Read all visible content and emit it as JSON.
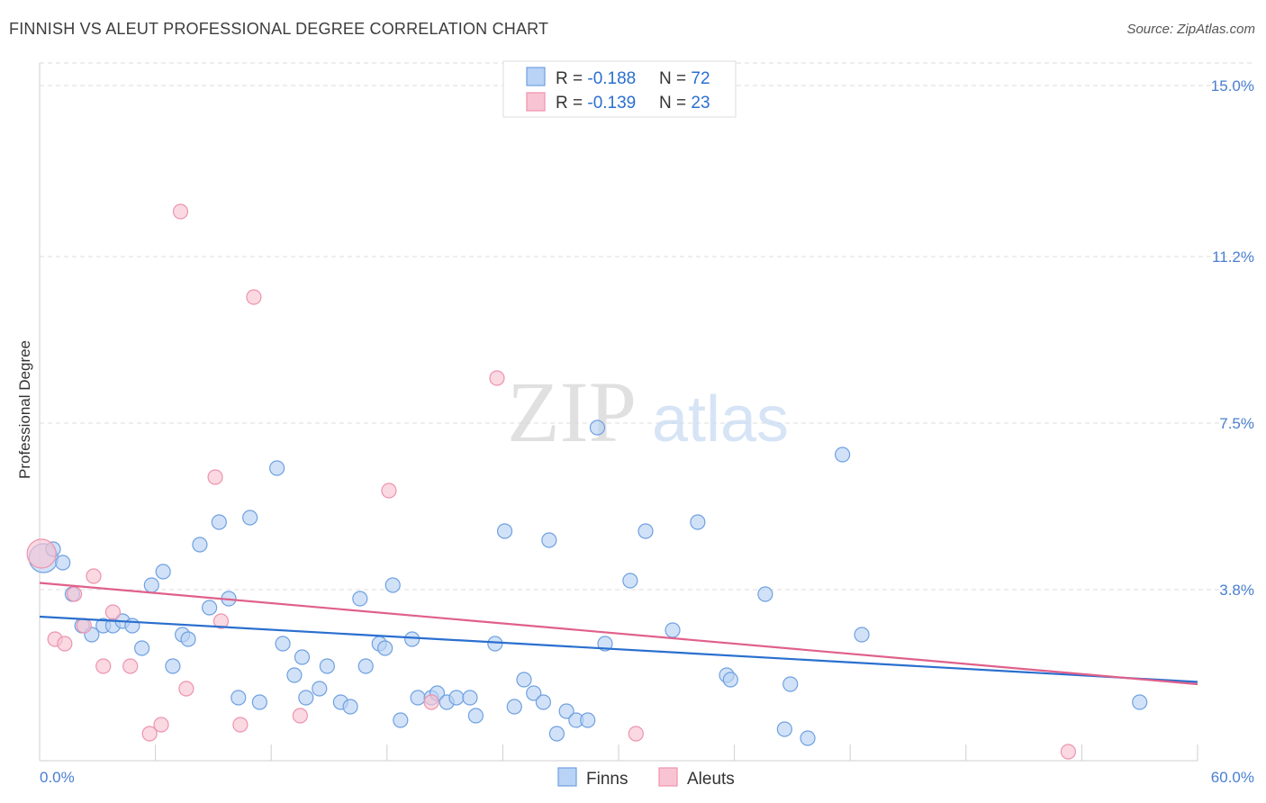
{
  "title": "FINNISH VS ALEUT PROFESSIONAL DEGREE CORRELATION CHART",
  "source": "Source: ZipAtlas.com",
  "watermark": {
    "zip": "ZIP",
    "atlas": "atlas"
  },
  "legend": {
    "rows": [
      {
        "r_label": "R = ",
        "r_value": "-0.188",
        "n_label": "N = ",
        "n_value": "72"
      },
      {
        "r_label": "R = ",
        "r_value": "-0.139",
        "n_label": "N = ",
        "n_value": "23"
      }
    ]
  },
  "colors": {
    "finns_fill": "#b8d3f5",
    "finns_stroke": "#6fa0e0",
    "finns_line": "#2a6fcf",
    "aleuts_fill": "#f8c4d3",
    "aleuts_stroke": "#ee93ae",
    "aleuts_line": "#e0608a",
    "tick": "#4a7fd0",
    "grid": "#dddddd"
  },
  "chart_data": {
    "type": "scatter",
    "title": "FINNISH VS ALEUT PROFESSIONAL DEGREE CORRELATION CHART",
    "xlabel": "",
    "ylabel": "Professional Degree",
    "xlim": [
      0,
      60
    ],
    "ylim": [
      0,
      15.5
    ],
    "x_tick_labels": [
      "0.0%",
      "60.0%"
    ],
    "y_ticks": [
      3.8,
      7.5,
      11.2,
      15.0
    ],
    "y_tick_labels": [
      "3.8%",
      "7.5%",
      "11.2%",
      "15.0%"
    ],
    "grid": true,
    "legend_position": "bottom-center",
    "series": [
      {
        "name": "Finns",
        "trend": {
          "x": [
            0,
            60
          ],
          "y": [
            3.2,
            1.75
          ]
        },
        "points": [
          [
            0.2,
            4.5
          ],
          [
            0.7,
            4.7
          ],
          [
            1.2,
            4.4
          ],
          [
            1.7,
            3.7
          ],
          [
            2.2,
            3.0
          ],
          [
            2.7,
            2.8
          ],
          [
            3.3,
            3.0
          ],
          [
            3.8,
            3.0
          ],
          [
            4.3,
            3.1
          ],
          [
            4.8,
            3.0
          ],
          [
            5.3,
            2.5
          ],
          [
            5.8,
            3.9
          ],
          [
            6.4,
            4.2
          ],
          [
            6.9,
            2.1
          ],
          [
            7.4,
            2.8
          ],
          [
            7.7,
            2.7
          ],
          [
            8.3,
            4.8
          ],
          [
            8.8,
            3.4
          ],
          [
            9.3,
            5.3
          ],
          [
            9.8,
            3.6
          ],
          [
            10.3,
            1.4
          ],
          [
            10.9,
            5.4
          ],
          [
            11.4,
            1.3
          ],
          [
            12.3,
            6.5
          ],
          [
            12.6,
            2.6
          ],
          [
            13.2,
            1.9
          ],
          [
            13.6,
            2.3
          ],
          [
            13.8,
            1.4
          ],
          [
            14.5,
            1.6
          ],
          [
            14.9,
            2.1
          ],
          [
            15.6,
            1.3
          ],
          [
            16.1,
            1.2
          ],
          [
            16.6,
            3.6
          ],
          [
            16.9,
            2.1
          ],
          [
            17.6,
            2.6
          ],
          [
            17.9,
            2.5
          ],
          [
            18.3,
            3.9
          ],
          [
            18.7,
            0.9
          ],
          [
            19.3,
            2.7
          ],
          [
            19.6,
            1.4
          ],
          [
            20.3,
            1.4
          ],
          [
            20.6,
            1.5
          ],
          [
            21.1,
            1.3
          ],
          [
            21.6,
            1.4
          ],
          [
            22.3,
            1.4
          ],
          [
            22.6,
            1.0
          ],
          [
            23.6,
            2.6
          ],
          [
            24.1,
            5.1
          ],
          [
            24.6,
            1.2
          ],
          [
            25.1,
            1.8
          ],
          [
            25.6,
            1.5
          ],
          [
            26.1,
            1.3
          ],
          [
            26.4,
            4.9
          ],
          [
            26.8,
            0.6
          ],
          [
            27.3,
            1.1
          ],
          [
            27.8,
            0.9
          ],
          [
            28.4,
            0.9
          ],
          [
            28.9,
            7.4
          ],
          [
            29.3,
            2.6
          ],
          [
            30.6,
            4.0
          ],
          [
            31.4,
            5.1
          ],
          [
            32.8,
            2.9
          ],
          [
            34.1,
            5.3
          ],
          [
            35.6,
            1.9
          ],
          [
            35.8,
            1.8
          ],
          [
            37.6,
            3.7
          ],
          [
            38.6,
            0.7
          ],
          [
            38.9,
            1.7
          ],
          [
            39.8,
            0.5
          ],
          [
            41.6,
            6.8
          ],
          [
            42.6,
            2.8
          ],
          [
            57.0,
            1.3
          ]
        ]
      },
      {
        "name": "Aleuts",
        "trend": {
          "x": [
            0,
            60
          ],
          "y": [
            3.95,
            1.7
          ]
        },
        "points": [
          [
            0.1,
            4.6
          ],
          [
            0.8,
            2.7
          ],
          [
            1.3,
            2.6
          ],
          [
            1.8,
            3.7
          ],
          [
            2.3,
            3.0
          ],
          [
            2.8,
            4.1
          ],
          [
            3.3,
            2.1
          ],
          [
            3.8,
            3.3
          ],
          [
            4.7,
            2.1
          ],
          [
            5.7,
            0.6
          ],
          [
            6.3,
            0.8
          ],
          [
            7.3,
            12.2
          ],
          [
            7.6,
            1.6
          ],
          [
            9.1,
            6.3
          ],
          [
            9.4,
            3.1
          ],
          [
            10.4,
            0.8
          ],
          [
            11.1,
            10.3
          ],
          [
            13.5,
            1.0
          ],
          [
            18.1,
            6.0
          ],
          [
            20.3,
            1.3
          ],
          [
            23.7,
            8.5
          ],
          [
            30.9,
            0.6
          ],
          [
            53.3,
            0.2
          ]
        ]
      }
    ]
  },
  "bottom_legend": [
    {
      "label": "Finns"
    },
    {
      "label": "Aleuts"
    }
  ]
}
